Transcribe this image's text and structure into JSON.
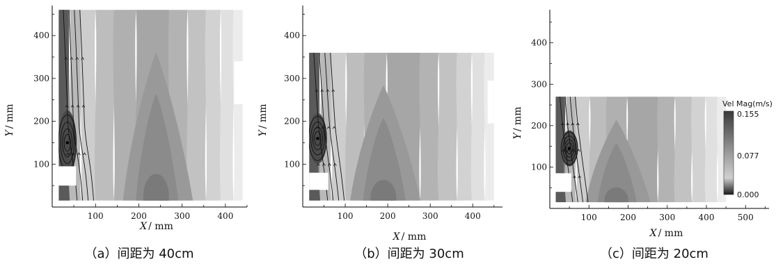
{
  "chart_data": [
    {
      "type": "heatmap",
      "caption": "（a）间距为 40cm",
      "xlabel": "X",
      "xunit": "/ mm",
      "ylabel": "Y",
      "yunit": "/ mm",
      "xticks": [
        100,
        200,
        300,
        400
      ],
      "yticks": [
        100,
        200,
        300,
        400
      ],
      "xlim": [
        0,
        450
      ],
      "ylim": [
        0,
        470
      ],
      "data_extent": {
        "x": [
          15,
          440
        ],
        "y": [
          15,
          460
        ]
      },
      "vortex_center": {
        "x": 35,
        "y": 150
      },
      "low_speed_core": {
        "x": 240,
        "y": 80
      },
      "cutouts": [
        {
          "x": [
            15,
            55
          ],
          "y": [
            50,
            95
          ]
        },
        {
          "x": [
            420,
            440
          ],
          "y": [
            240,
            340
          ]
        }
      ]
    },
    {
      "type": "heatmap",
      "caption": "（b）间距为 30cm",
      "xlabel": "X",
      "xunit": "/ mm",
      "ylabel": "Y",
      "yunit": "/ mm",
      "xticks": [
        100,
        200,
        300,
        400
      ],
      "yticks": [
        100,
        200,
        300,
        400
      ],
      "xlim": [
        0,
        470
      ],
      "ylim": [
        0,
        470
      ],
      "data_extent": {
        "x": [
          15,
          450
        ],
        "y": [
          15,
          360
        ]
      },
      "vortex_center": {
        "x": 35,
        "y": 160
      },
      "low_speed_core": {
        "x": 190,
        "y": 50
      },
      "cutouts": [
        {
          "x": [
            15,
            60
          ],
          "y": [
            40,
            80
          ]
        },
        {
          "x": [
            435,
            450
          ],
          "y": [
            195,
            295
          ]
        }
      ]
    },
    {
      "type": "heatmap",
      "caption": "（c）间距为 20cm",
      "xlabel": "X",
      "xunit": "/ mm",
      "ylabel": "Y",
      "yunit": "/ mm",
      "xticks": [
        100,
        200,
        300,
        400,
        500
      ],
      "yticks": [
        100,
        200,
        300,
        400
      ],
      "xlim": [
        0,
        560
      ],
      "ylim": [
        0,
        480
      ],
      "data_extent": {
        "x": [
          15,
          450
        ],
        "y": [
          15,
          270
        ]
      },
      "vortex_center": {
        "x": 50,
        "y": 145
      },
      "low_speed_core": {
        "x": 170,
        "y": 50
      },
      "cutouts": [
        {
          "x": [
            15,
            55
          ],
          "y": [
            40,
            85
          ]
        }
      ],
      "legend": {
        "title": "Vel Mag(m/s)",
        "max_label": "0.155",
        "mid_label": "0.077",
        "min_label": "0.000"
      }
    }
  ]
}
